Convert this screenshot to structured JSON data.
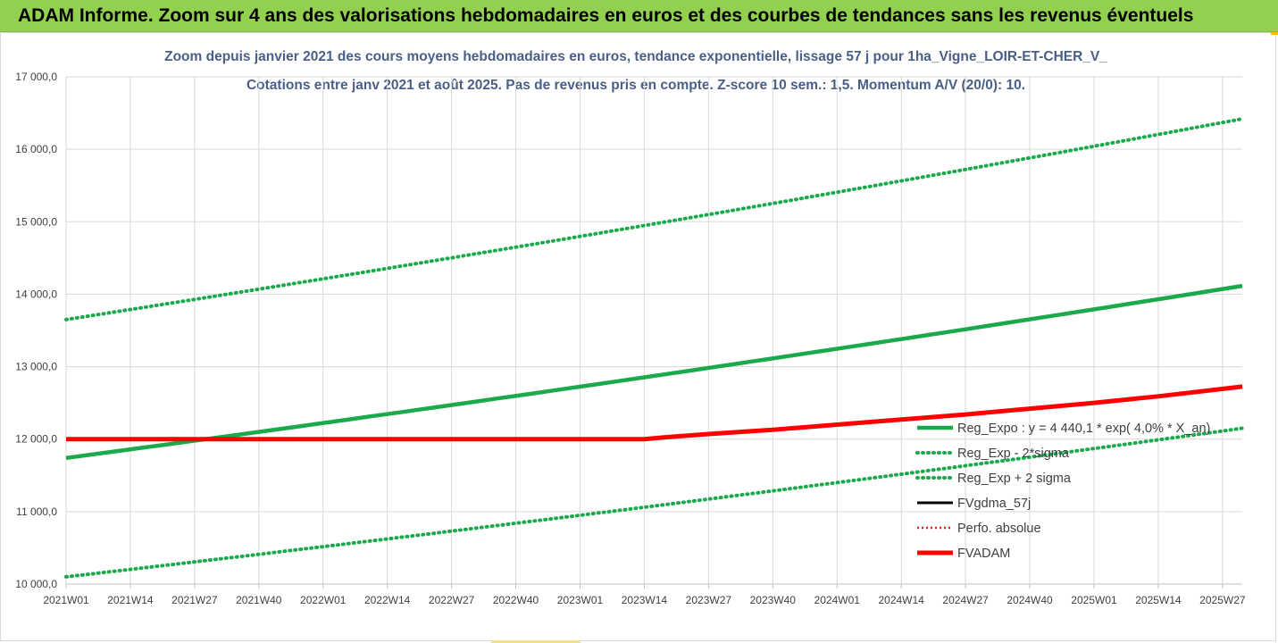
{
  "header": {
    "banner_title": "ADAM Informe. Zoom sur 4 ans des valorisations hebdomadaires en euros et des courbes de tendances sans les revenus éventuels"
  },
  "colors": {
    "banner_bg": "#92d050",
    "title": "#4a5f87",
    "reg_expo": "#1aaa4b",
    "sigma_bands": "#1aaa4b",
    "fv_gdma": "#000000",
    "perfo": "#e02020",
    "fv_adam": "#ff0000"
  },
  "chart_data": {
    "type": "line",
    "title": "Zoom depuis janvier 2021 des cours moyens hebdomadaires en euros, tendance exponentielle, lissage 57 j pour 1ha_Vigne_LOIR-ET-CHER_V_",
    "subtitle": "Cotations entre janv 2021 et août 2025. Pas de revenus pris en compte. Z-score 10 sem.: 1,5. Momentum A/V (20/0): 10.",
    "xlabel": "",
    "ylabel": "",
    "x_ticks": [
      "2021W01",
      "2021W14",
      "2021W27",
      "2021W40",
      "2022W01",
      "2022W14",
      "2022W27",
      "2022W40",
      "2023W01",
      "2023W14",
      "2023W27",
      "2023W40",
      "2024W01",
      "2024W14",
      "2024W27",
      "2024W40",
      "2025W01",
      "2025W14",
      "2025W27"
    ],
    "y_ticks": [
      "10 000,0",
      "11 000,0",
      "12 000,0",
      "13 000,0",
      "14 000,0",
      "15 000,0",
      "16 000,0",
      "17 000,0"
    ],
    "ylim": [
      10000,
      17000
    ],
    "x_range_weeks": [
      0,
      238
    ],
    "grid": true,
    "legend_position": "right",
    "series": [
      {
        "name": "Reg_Expo : y = 4 440,1 * exp( 4,0% * X_an)",
        "style": "solid",
        "x": [
          0,
          238
        ],
        "y": [
          11740,
          14115
        ],
        "exponential": true
      },
      {
        "name": "Reg_Exp - 2*sigma",
        "style": "dotted",
        "x": [
          0,
          238
        ],
        "y": [
          10100,
          12150
        ],
        "exponential": true
      },
      {
        "name": "Reg_Exp + 2 sigma",
        "style": "dotted",
        "x": [
          0,
          238
        ],
        "y": [
          13650,
          16420
        ],
        "exponential": true
      },
      {
        "name": "FVgdma_57j",
        "style": "solid-thin",
        "x": [
          0,
          117,
          121,
          130,
          143,
          156,
          169,
          182,
          195,
          208,
          221,
          238
        ],
        "y": [
          12000,
          12000,
          12025,
          12070,
          12130,
          12200,
          12270,
          12340,
          12420,
          12500,
          12590,
          12735
        ]
      },
      {
        "name": "Perfo. absolue",
        "style": "dotted",
        "x": [],
        "y": []
      },
      {
        "name": "FVADAM",
        "style": "solid-thick",
        "x": [
          0,
          117,
          121,
          130,
          143,
          156,
          169,
          182,
          195,
          208,
          221,
          238
        ],
        "y": [
          12000,
          12000,
          12025,
          12070,
          12130,
          12200,
          12270,
          12340,
          12420,
          12500,
          12590,
          12725
        ]
      }
    ]
  }
}
